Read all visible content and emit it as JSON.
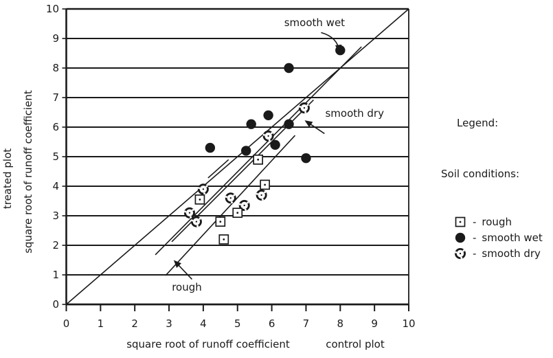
{
  "figure": {
    "background": "#ffffff",
    "ink_color": "#1a1a1a"
  },
  "chart_data": {
    "type": "scatter",
    "title": "",
    "xlabel": "square root of runoff coefficient",
    "xlabel_suffix": "control plot",
    "ylabel_outer": "treated plot",
    "ylabel_inner": "square root of runoff coefficient",
    "xlim": [
      0,
      10
    ],
    "ylim": [
      0,
      10
    ],
    "xticks": [
      0,
      1,
      2,
      3,
      4,
      5,
      6,
      7,
      8,
      9,
      10
    ],
    "yticks": [
      0,
      1,
      2,
      3,
      4,
      5,
      6,
      7,
      8,
      9,
      10
    ],
    "grid": "horizontal-only",
    "legend_position": "right-outside",
    "series": [
      {
        "name": "smooth wet",
        "marker": "filled-circle",
        "points": [
          [
            8.0,
            8.6
          ],
          [
            6.5,
            8.0
          ],
          [
            5.9,
            6.4
          ],
          [
            5.4,
            6.1
          ],
          [
            6.5,
            6.1
          ],
          [
            4.2,
            5.3
          ],
          [
            5.25,
            5.2
          ],
          [
            6.1,
            5.4
          ],
          [
            7.0,
            4.95
          ]
        ]
      },
      {
        "name": "smooth dry",
        "marker": "stippled-circle",
        "points": [
          [
            6.95,
            6.65
          ],
          [
            5.9,
            5.7
          ],
          [
            4.0,
            3.9
          ],
          [
            5.7,
            3.7
          ],
          [
            4.8,
            3.6
          ],
          [
            5.2,
            3.35
          ],
          [
            3.6,
            3.1
          ],
          [
            3.8,
            2.8
          ]
        ]
      },
      {
        "name": "rough",
        "marker": "square-dot",
        "points": [
          [
            5.6,
            4.9
          ],
          [
            5.8,
            4.05
          ],
          [
            3.9,
            3.55
          ],
          [
            5.0,
            3.1
          ],
          [
            4.5,
            2.8
          ],
          [
            4.6,
            2.2
          ]
        ]
      }
    ],
    "lines": [
      {
        "name": "identity-line",
        "from": [
          0,
          0
        ],
        "to": [
          10,
          10
        ]
      },
      {
        "name": "smooth-wet-fit-line",
        "from": [
          2.6,
          1.68
        ],
        "to": [
          8.62,
          8.72
        ]
      },
      {
        "name": "smooth-dry-fit-line",
        "from": [
          3.08,
          2.12
        ],
        "to": [
          7.22,
          6.92
        ]
      },
      {
        "name": "rough-fit-line",
        "from": [
          2.9,
          0.98
        ],
        "to": [
          6.68,
          5.72
        ]
      },
      {
        "name": "short-dash-segment",
        "from": [
          4.14,
          4.28
        ],
        "to": [
          4.74,
          4.9
        ]
      }
    ],
    "annotations": [
      {
        "text": "smooth wet",
        "at": [
          7.25,
          9.42
        ],
        "arrow_from": [
          7.44,
          9.2
        ],
        "arrow_to": [
          7.97,
          8.58
        ],
        "curved": true
      },
      {
        "text": "smooth dry",
        "at": [
          8.42,
          6.35
        ],
        "arrow_from": [
          7.54,
          5.78
        ],
        "arrow_to": [
          7.0,
          6.2
        ],
        "curved": false
      },
      {
        "text": "rough",
        "at": [
          3.52,
          0.47
        ],
        "arrow_from": [
          3.67,
          0.85
        ],
        "arrow_to": [
          3.17,
          1.46
        ],
        "curved": false
      }
    ]
  },
  "legend": {
    "title": "Legend:",
    "subtitle": "Soil conditions:",
    "separator": "-",
    "items": [
      {
        "marker": "square-dot",
        "label": "rough"
      },
      {
        "marker": "filled-circle",
        "label": "smooth wet"
      },
      {
        "marker": "stippled-circle",
        "label": "smooth dry"
      }
    ]
  }
}
